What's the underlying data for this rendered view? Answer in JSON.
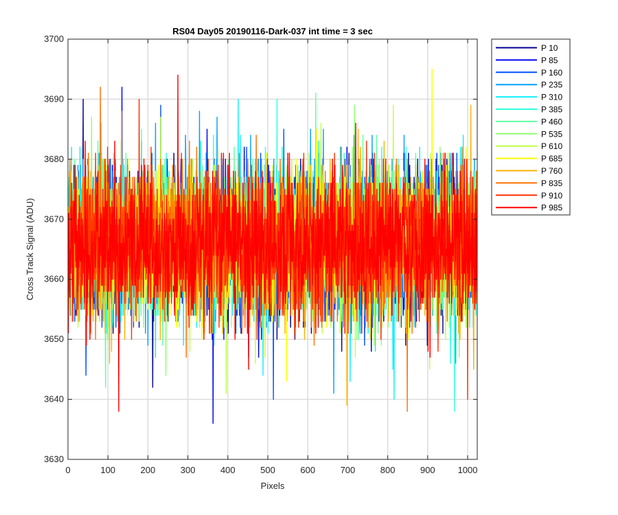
{
  "chart_data": {
    "type": "line",
    "title": "RS04 Day05 20190116-Dark-037 int time = 3 sec",
    "xlabel": "Pixels",
    "ylabel": "Cross Track Signal (ADU)",
    "xlim": [
      0,
      1024
    ],
    "ylim": [
      3630,
      3700
    ],
    "xticks": [
      0,
      100,
      200,
      300,
      400,
      500,
      600,
      700,
      800,
      900,
      1000
    ],
    "yticks": [
      3630,
      3640,
      3650,
      3660,
      3670,
      3680,
      3690,
      3700
    ],
    "grid": true,
    "legend_placement": "outside-right",
    "series_mean": 3666,
    "series_noise_sd": 6,
    "series_length": 1024,
    "series": [
      {
        "name": "P 10",
        "color": "#00008f",
        "min": 3642,
        "max": 3690
      },
      {
        "name": "P 85",
        "color": "#0000ef",
        "min": 3636,
        "max": 3692
      },
      {
        "name": "P 160",
        "color": "#0050ff",
        "min": 3640,
        "max": 3689
      },
      {
        "name": "P 235",
        "color": "#00a0ff",
        "min": 3641,
        "max": 3688
      },
      {
        "name": "P 310",
        "color": "#10efff",
        "min": 3640,
        "max": 3690
      },
      {
        "name": "P 385",
        "color": "#30ffe0",
        "min": 3638,
        "max": 3690
      },
      {
        "name": "P 460",
        "color": "#60ffa0",
        "min": 3642,
        "max": 3691
      },
      {
        "name": "P 535",
        "color": "#90ff70",
        "min": 3644,
        "max": 3689
      },
      {
        "name": "P 610",
        "color": "#c0ff40",
        "min": 3641,
        "max": 3689
      },
      {
        "name": "P 685",
        "color": "#ffff00",
        "min": 3643,
        "max": 3695
      },
      {
        "name": "P 760",
        "color": "#ffb000",
        "min": 3639,
        "max": 3689
      },
      {
        "name": "P 835",
        "color": "#ff7000",
        "min": 3638,
        "max": 3692
      },
      {
        "name": "P 910",
        "color": "#ff3000",
        "min": 3640,
        "max": 3690
      },
      {
        "name": "P 985",
        "color": "#ff0000",
        "min": 3638,
        "max": 3694
      }
    ]
  }
}
